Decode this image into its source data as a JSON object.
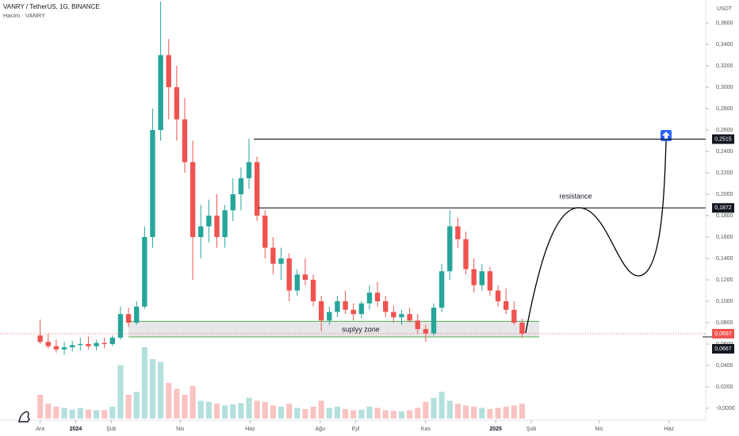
{
  "chart_data": {
    "type": "candlestick",
    "title": "VANRY / TetherUS, 1G, BINANCE",
    "subtitle": "Hacim · VANRY",
    "unit": "USDT",
    "x": [
      0,
      7,
      14,
      21,
      28,
      35,
      42,
      49,
      56,
      63,
      70,
      77,
      84,
      91,
      98,
      105,
      112,
      119,
      126,
      133,
      140,
      147,
      154,
      161,
      168,
      175,
      182,
      189,
      196,
      203,
      210,
      217,
      224,
      231,
      238,
      245,
      252,
      259,
      266,
      273,
      280,
      287,
      294,
      301,
      308,
      315,
      322,
      329,
      336,
      343,
      350,
      357,
      364,
      371,
      378,
      385,
      392,
      399,
      406,
      413,
      420
    ],
    "open": [
      0.068,
      0.062,
      0.058,
      0.055,
      0.057,
      0.059,
      0.06,
      0.058,
      0.061,
      0.06,
      0.066,
      0.088,
      0.08,
      0.095,
      0.16,
      0.26,
      0.33,
      0.3,
      0.27,
      0.23,
      0.16,
      0.17,
      0.18,
      0.16,
      0.185,
      0.2,
      0.215,
      0.23,
      0.18,
      0.15,
      0.135,
      0.14,
      0.11,
      0.125,
      0.12,
      0.1,
      0.082,
      0.09,
      0.1,
      0.092,
      0.088,
      0.098,
      0.108,
      0.1,
      0.09,
      0.085,
      0.088,
      0.082,
      0.074,
      0.07,
      0.094,
      0.128,
      0.17,
      0.158,
      0.13,
      0.115,
      0.128,
      0.11,
      0.1,
      0.092,
      0.08
    ],
    "high": [
      0.083,
      0.07,
      0.064,
      0.062,
      0.063,
      0.066,
      0.067,
      0.064,
      0.066,
      0.068,
      0.095,
      0.094,
      0.1,
      0.17,
      0.28,
      0.38,
      0.345,
      0.32,
      0.29,
      0.25,
      0.19,
      0.195,
      0.2,
      0.19,
      0.215,
      0.225,
      0.252,
      0.235,
      0.185,
      0.16,
      0.15,
      0.145,
      0.13,
      0.14,
      0.125,
      0.105,
      0.095,
      0.105,
      0.11,
      0.098,
      0.1,
      0.115,
      0.118,
      0.105,
      0.096,
      0.092,
      0.094,
      0.088,
      0.078,
      0.098,
      0.135,
      0.185,
      0.178,
      0.165,
      0.14,
      0.135,
      0.132,
      0.115,
      0.112,
      0.1,
      0.084
    ],
    "low": [
      0.06,
      0.056,
      0.052,
      0.05,
      0.053,
      0.054,
      0.055,
      0.054,
      0.056,
      0.058,
      0.064,
      0.076,
      0.078,
      0.093,
      0.15,
      0.25,
      0.27,
      0.25,
      0.22,
      0.12,
      0.14,
      0.155,
      0.15,
      0.15,
      0.175,
      0.185,
      0.205,
      0.175,
      0.14,
      0.125,
      0.12,
      0.1,
      0.105,
      0.115,
      0.095,
      0.072,
      0.078,
      0.085,
      0.088,
      0.082,
      0.084,
      0.092,
      0.095,
      0.085,
      0.08,
      0.078,
      0.08,
      0.07,
      0.062,
      0.068,
      0.09,
      0.12,
      0.15,
      0.125,
      0.108,
      0.11,
      0.105,
      0.095,
      0.088,
      0.078,
      0.066
    ],
    "close": [
      0.062,
      0.058,
      0.055,
      0.057,
      0.059,
      0.06,
      0.058,
      0.061,
      0.06,
      0.066,
      0.088,
      0.08,
      0.095,
      0.16,
      0.26,
      0.33,
      0.3,
      0.27,
      0.23,
      0.16,
      0.17,
      0.18,
      0.16,
      0.185,
      0.2,
      0.215,
      0.23,
      0.18,
      0.15,
      0.135,
      0.14,
      0.11,
      0.125,
      0.12,
      0.1,
      0.082,
      0.09,
      0.1,
      0.092,
      0.088,
      0.098,
      0.108,
      0.1,
      0.09,
      0.085,
      0.088,
      0.082,
      0.074,
      0.07,
      0.094,
      0.128,
      0.17,
      0.158,
      0.13,
      0.115,
      0.128,
      0.11,
      0.1,
      0.092,
      0.08,
      0.0697
    ],
    "volume": [
      40,
      25,
      20,
      18,
      15,
      18,
      15,
      14,
      14,
      20,
      90,
      40,
      45,
      120,
      100,
      95,
      60,
      50,
      40,
      55,
      30,
      28,
      25,
      22,
      24,
      26,
      35,
      30,
      28,
      22,
      20,
      25,
      18,
      16,
      20,
      30,
      18,
      20,
      16,
      14,
      15,
      20,
      18,
      14,
      13,
      12,
      14,
      18,
      28,
      35,
      45,
      30,
      25,
      22,
      20,
      18,
      16,
      18,
      20,
      22,
      25
    ],
    "up_color": "#26a69a",
    "down_color": "#ef5350",
    "xlim": [
      -35,
      580
    ],
    "xticks": [
      {
        "value": 0,
        "label": "Ara"
      },
      {
        "value": 31,
        "label": "2024"
      },
      {
        "value": 62,
        "label": "Şub"
      },
      {
        "value": 122,
        "label": "Nis"
      },
      {
        "value": 183,
        "label": "Haz"
      },
      {
        "value": 244,
        "label": "Ağu"
      },
      {
        "value": 275,
        "label": "Eyl"
      },
      {
        "value": 336,
        "label": "Kas"
      },
      {
        "value": 397,
        "label": "2025"
      },
      {
        "value": 428,
        "label": "Şub"
      },
      {
        "value": 487,
        "label": "Nis"
      },
      {
        "value": 548,
        "label": "Haz"
      }
    ],
    "ylim": [
      -0.0111,
      0.3815
    ],
    "yticks": [
      {
        "value": 0,
        "label": "-0,0000"
      },
      {
        "value": 0.02,
        "label": "0,0200"
      },
      {
        "value": 0.04,
        "label": "0,0400"
      },
      {
        "value": 0.06,
        "label": "0,0600"
      },
      {
        "value": 0.08,
        "label": "0,0800"
      },
      {
        "value": 0.1,
        "label": "0,1000"
      },
      {
        "value": 0.12,
        "label": "0,1200"
      },
      {
        "value": 0.14,
        "label": "0,1400"
      },
      {
        "value": 0.16,
        "label": "0,1600"
      },
      {
        "value": 0.18,
        "label": "0,1800"
      },
      {
        "value": 0.2,
        "label": "0,2000"
      },
      {
        "value": 0.22,
        "label": "0,2200"
      },
      {
        "value": 0.24,
        "label": "0,2400"
      },
      {
        "value": 0.26,
        "label": "0,2600"
      },
      {
        "value": 0.28,
        "label": "0,2800"
      },
      {
        "value": 0.3,
        "label": "0,3000"
      },
      {
        "value": 0.32,
        "label": "0,3200"
      },
      {
        "value": 0.34,
        "label": "0,3400"
      },
      {
        "value": 0.36,
        "label": "0,3600"
      }
    ],
    "levels": [
      {
        "value": 0.2515,
        "label": "0,2515"
      },
      {
        "value": 0.1872,
        "label": "0,1872"
      }
    ],
    "resistance_label": "resistance",
    "zone": {
      "low": {
        "value": 0.0667,
        "label": "0,0667"
      },
      "high": 0.0812,
      "label": "suplyy zone"
    },
    "last_price": {
      "value": 0.0697,
      "label": "0,0697"
    }
  }
}
